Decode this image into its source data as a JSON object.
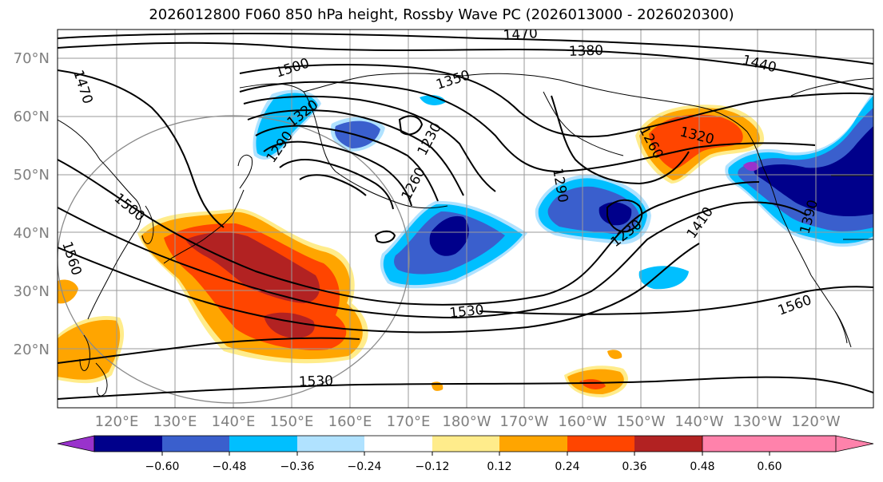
{
  "title": "2026012800 F060 850 hPa height, Rossby Wave PC (2026013000 - 2026020300)",
  "map": {
    "latitude_labels": [
      "70°N",
      "60°N",
      "50°N",
      "40°N",
      "30°N",
      "20°N"
    ],
    "longitude_labels": [
      "120°E",
      "130°E",
      "140°E",
      "150°E",
      "160°E",
      "170°E",
      "180°W",
      "170°W",
      "160°W",
      "150°W",
      "140°W",
      "130°W",
      "120°W"
    ],
    "height_contour_labels": [
      "1470",
      "1380",
      "1440",
      "1500",
      "1350",
      "1470",
      "1320",
      "1290",
      "1230",
      "1260",
      "1320",
      "1260",
      "1290",
      "1500",
      "1230",
      "1410",
      "1390",
      "1560",
      "1530",
      "1560",
      "1530"
    ]
  },
  "colorbar": {
    "tick_labels": [
      "−0.60",
      "−0.48",
      "−0.36",
      "−0.24",
      "−0.12",
      "0.12",
      "0.24",
      "0.36",
      "0.48",
      "0.60"
    ],
    "colors": [
      "#9932cc",
      "#00008b",
      "#3a5fcd",
      "#00bfff",
      "#b0e2ff",
      "#ffffff",
      "#ffec8b",
      "#ffa500",
      "#ff4500",
      "#b22222",
      "#ff82ab"
    ]
  }
}
